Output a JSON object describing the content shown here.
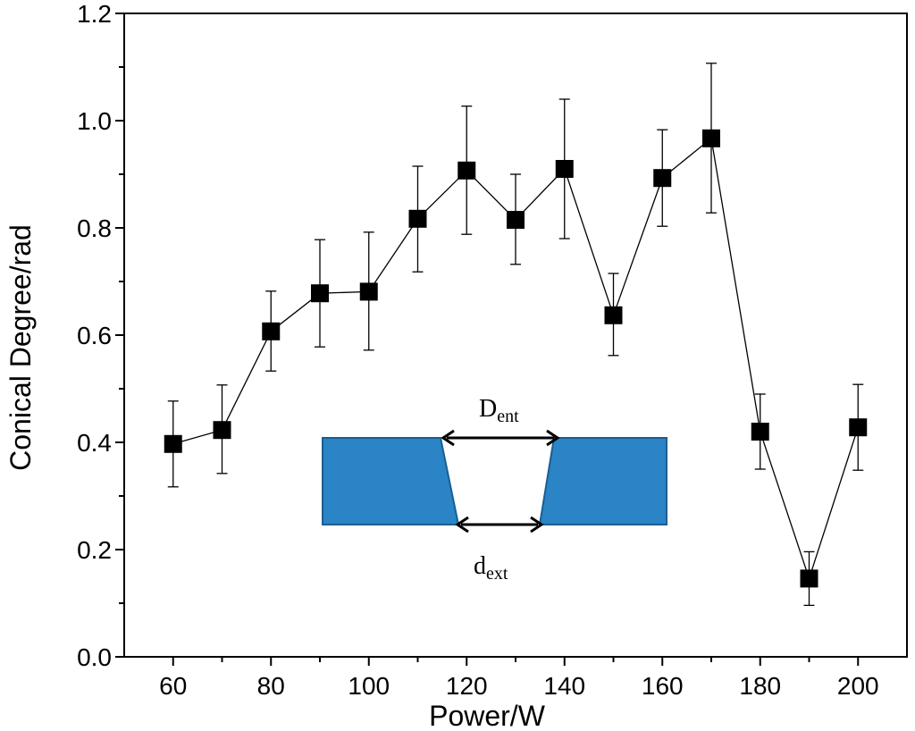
{
  "chart_data": {
    "type": "scatter",
    "title": "",
    "xlabel": "Power/W",
    "ylabel": "Conical Degree/rad",
    "xlim": [
      50,
      210
    ],
    "ylim": [
      0.0,
      1.2
    ],
    "xticks": [
      60,
      80,
      100,
      120,
      140,
      160,
      180,
      200
    ],
    "xticks_minor": [
      70,
      90,
      110,
      130,
      150,
      170,
      190
    ],
    "yticks": [
      "0.0",
      "0.2",
      "0.4",
      "0.6",
      "0.8",
      "1.0",
      "1.2"
    ],
    "yticks_minor": [
      0.1,
      0.3,
      0.5,
      0.7,
      0.9,
      1.1
    ],
    "grid": false,
    "marker": "square",
    "connect_points": true,
    "series": [
      {
        "name": "Conical degree",
        "x": [
          60,
          70,
          80,
          90,
          100,
          110,
          120,
          130,
          140,
          150,
          160,
          170,
          180,
          190,
          200
        ],
        "y": [
          0.397,
          0.423,
          0.607,
          0.678,
          0.681,
          0.817,
          0.907,
          0.815,
          0.91,
          0.637,
          0.893,
          0.967,
          0.42,
          0.146,
          0.428
        ],
        "err_upper": [
          0.477,
          0.507,
          0.682,
          0.778,
          0.792,
          0.915,
          1.027,
          0.9,
          1.04,
          0.715,
          0.983,
          1.107,
          0.49,
          0.196,
          0.508
        ],
        "err_lower": [
          0.317,
          0.342,
          0.533,
          0.578,
          0.572,
          0.718,
          0.788,
          0.732,
          0.78,
          0.562,
          0.803,
          0.828,
          0.35,
          0.096,
          0.348
        ]
      }
    ],
    "inset": {
      "description": "cross-section of a conical hole in a plate",
      "plate_color": "#2A84C6",
      "entrance_label": "D",
      "entrance_sub": "ent",
      "exit_label": "d",
      "exit_sub": "ext"
    }
  }
}
